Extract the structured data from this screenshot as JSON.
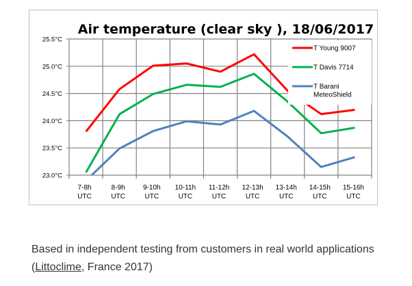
{
  "chart_data": {
    "type": "line",
    "title": "Air temperature (clear sky ), 18/06/2017",
    "categories": [
      [
        "7-8h",
        "UTC"
      ],
      [
        "8-9h",
        "UTC"
      ],
      [
        "9-10h",
        "UTC"
      ],
      [
        "10-11h",
        "UTC"
      ],
      [
        "11-12h",
        "UTC"
      ],
      [
        "12-13h",
        "UTC"
      ],
      [
        "13-14h",
        "UTC"
      ],
      [
        "14-15h",
        "UTC"
      ],
      [
        "15-16h",
        "UTC"
      ]
    ],
    "ylim": [
      23.0,
      25.5
    ],
    "yticks": [
      "23.0°C",
      "23.5°C",
      "24.0°C",
      "24.5°C",
      "25.0°C",
      "25.5°C"
    ],
    "ytick_values": [
      23.0,
      23.5,
      24.0,
      24.5,
      25.0,
      25.5
    ],
    "grid": true,
    "legend_position": "top-right",
    "series": [
      {
        "name": "T Young 9007",
        "color": "#ff0000",
        "values": [
          23.8,
          24.58,
          25.01,
          25.05,
          24.9,
          25.22,
          24.55,
          24.12,
          24.2
        ]
      },
      {
        "name": "T Davis 7714",
        "color": "#00b050",
        "values": [
          23.05,
          24.12,
          24.49,
          24.66,
          24.62,
          24.86,
          24.35,
          23.77,
          23.87
        ]
      },
      {
        "name": [
          "T Barani",
          "MeteoShield"
        ],
        "color": "#4f81bd",
        "values": [
          22.9,
          23.49,
          23.81,
          23.99,
          23.93,
          24.18,
          23.71,
          23.15,
          23.33
        ]
      }
    ]
  },
  "caption": {
    "before": "Based in independent testing from customers in real world applications (",
    "link": "Littoclime",
    "after": ", France 2017)"
  }
}
